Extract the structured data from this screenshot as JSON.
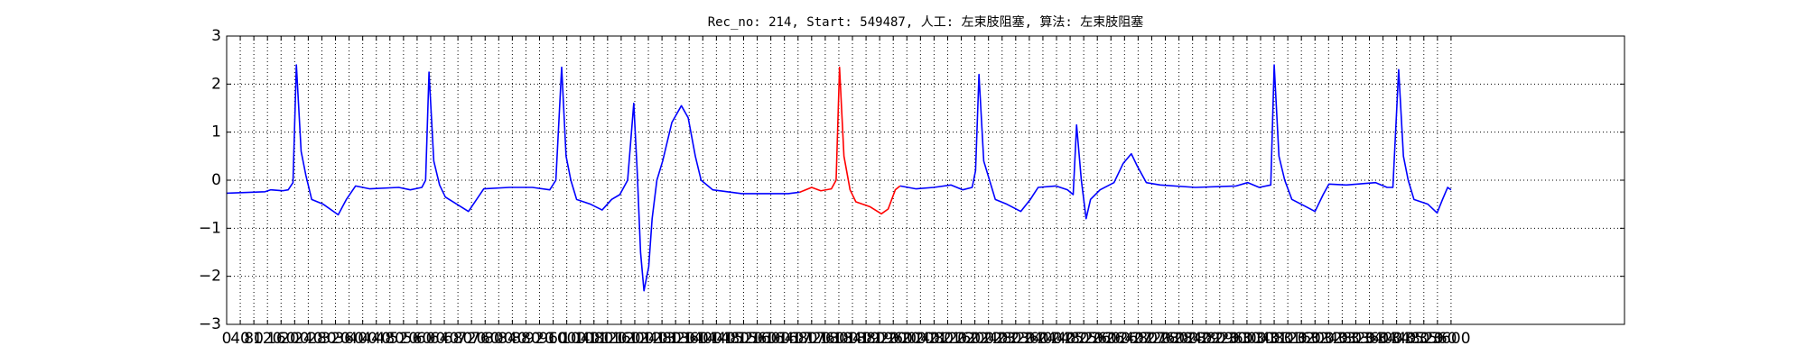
{
  "chart_data": {
    "type": "line",
    "title": "Rec_no: 214, Start: 549487, 人工: 左束肢阻塞, 算法: 左束肢阻塞",
    "grid": true,
    "xlim": [
      0,
      4110
    ],
    "ylim": [
      -3,
      3
    ],
    "yticks": [
      {
        "value": -3,
        "label": "−3"
      },
      {
        "value": -2,
        "label": "−2"
      },
      {
        "value": -1,
        "label": "−1"
      },
      0,
      1,
      2,
      3
    ],
    "xticks": [
      0,
      40,
      80,
      120,
      160,
      200,
      240,
      280,
      320,
      360,
      400,
      440,
      480,
      520,
      560,
      600,
      640,
      680,
      720,
      760,
      800,
      840,
      880,
      920,
      960,
      1000,
      1040,
      1080,
      1120,
      1160,
      1200,
      1240,
      1280,
      1320,
      1360,
      1400,
      1440,
      1480,
      1520,
      1560,
      1600,
      1640,
      1680,
      1720,
      1760,
      1800,
      1840,
      1880,
      1920,
      1960,
      2000,
      2040,
      2080,
      2120,
      2160,
      2200,
      2240,
      2280,
      2320,
      2360,
      2400,
      2440,
      2480,
      2520,
      2560,
      2600,
      2640,
      2680,
      2720,
      2760,
      2800,
      2840,
      2880,
      2920,
      2960,
      3000,
      3040,
      3080,
      3120,
      3160,
      3200,
      3240,
      3280,
      3320,
      3360,
      3400,
      3440,
      3480,
      3520,
      3560,
      3600
    ],
    "x": [
      0,
      113,
      130,
      164,
      181,
      195,
      205,
      219,
      233,
      250,
      284,
      328,
      352,
      379,
      421,
      506,
      540,
      574,
      585,
      595,
      609,
      626,
      643,
      677,
      711,
      735,
      756,
      831,
      899,
      950,
      968,
      985,
      998,
      1012,
      1029,
      1070,
      1104,
      1132,
      1156,
      1179,
      1197,
      1207,
      1217,
      1227,
      1241,
      1251,
      1265,
      1282,
      1309,
      1337,
      1357,
      1378,
      1395,
      1429,
      1515,
      1651,
      1685,
      1720,
      1747,
      1778,
      1792,
      1802,
      1815,
      1833,
      1850,
      1891,
      1925,
      1945,
      1966,
      1980,
      2027,
      2079,
      2130,
      2164,
      2192,
      2202,
      2212,
      2226,
      2243,
      2260,
      2294,
      2335,
      2363,
      2386,
      2438,
      2472,
      2489,
      2499,
      2513,
      2527,
      2540,
      2568,
      2609,
      2636,
      2660,
      2677,
      2704,
      2745,
      2848,
      2968,
      3002,
      3036,
      3070,
      3080,
      3094,
      3111,
      3132,
      3173,
      3200,
      3224,
      3241,
      3292,
      3378,
      3412,
      3429,
      3446,
      3460,
      3474,
      3491,
      3532,
      3559,
      3575,
      3590,
      3600
    ],
    "series": [
      {
        "color": "#0000ff",
        "values": [
          -0.27,
          -0.24,
          -0.2,
          -0.22,
          -0.2,
          -0.05,
          2.4,
          0.6,
          0.1,
          -0.4,
          -0.5,
          -0.72,
          -0.4,
          -0.12,
          -0.18,
          -0.15,
          -0.2,
          -0.15,
          0,
          2.25,
          0.4,
          -0.1,
          -0.35,
          -0.5,
          -0.65,
          -0.4,
          -0.18,
          -0.15,
          -0.15,
          -0.2,
          0,
          2.35,
          0.5,
          0,
          -0.4,
          -0.5,
          -0.62,
          -0.4,
          -0.3,
          0,
          1.6,
          0.2,
          -1.5,
          -2.3,
          -1.8,
          -0.8,
          0,
          0.4,
          1.2,
          1.55,
          1.3,
          0.5,
          0,
          -0.2,
          -0.28,
          -0.28,
          -0.25,
          null,
          null,
          null,
          null,
          null,
          null,
          null,
          null,
          null,
          null,
          null,
          null,
          -0.12,
          -0.18,
          -0.15,
          -0.1,
          -0.2,
          -0.15,
          0.2,
          2.2,
          0.4,
          0,
          -0.4,
          -0.5,
          -0.65,
          -0.4,
          -0.15,
          -0.12,
          -0.2,
          -0.3,
          1.15,
          0,
          -0.8,
          -0.4,
          -0.2,
          -0.05,
          0.35,
          0.55,
          0.3,
          -0.05,
          -0.1,
          -0.15,
          -0.12,
          -0.05,
          -0.15,
          -0.1,
          2.4,
          0.5,
          0,
          -0.4,
          -0.55,
          -0.65,
          -0.3,
          -0.08,
          -0.1,
          -0.05,
          -0.15,
          -0.15,
          2.3,
          0.5,
          0,
          -0.4,
          -0.5,
          -0.68,
          -0.4,
          -0.15,
          -0.2
        ]
      },
      {
        "color": "#ff0000",
        "values": [
          null,
          null,
          null,
          null,
          null,
          null,
          null,
          null,
          null,
          null,
          null,
          null,
          null,
          null,
          null,
          null,
          null,
          null,
          null,
          null,
          null,
          null,
          null,
          null,
          null,
          null,
          null,
          null,
          null,
          null,
          null,
          null,
          null,
          null,
          null,
          null,
          null,
          null,
          null,
          null,
          null,
          null,
          null,
          null,
          null,
          null,
          null,
          null,
          null,
          null,
          null,
          null,
          null,
          null,
          null,
          null,
          -0.25,
          -0.15,
          -0.22,
          -0.18,
          0,
          2.35,
          0.5,
          -0.2,
          -0.45,
          -0.55,
          -0.7,
          -0.6,
          -0.2,
          -0.12,
          null,
          null,
          null,
          null,
          null,
          null,
          null,
          null,
          null,
          null,
          null,
          null,
          null,
          null,
          null,
          null,
          null,
          null,
          null,
          null,
          null,
          null,
          null,
          null,
          null,
          null,
          null,
          null,
          null,
          null,
          null,
          null,
          null,
          null,
          null,
          null,
          null,
          null,
          null,
          null,
          null,
          null,
          null,
          null,
          null,
          null,
          null,
          null,
          null,
          null,
          null,
          null,
          null,
          null
        ]
      }
    ]
  }
}
